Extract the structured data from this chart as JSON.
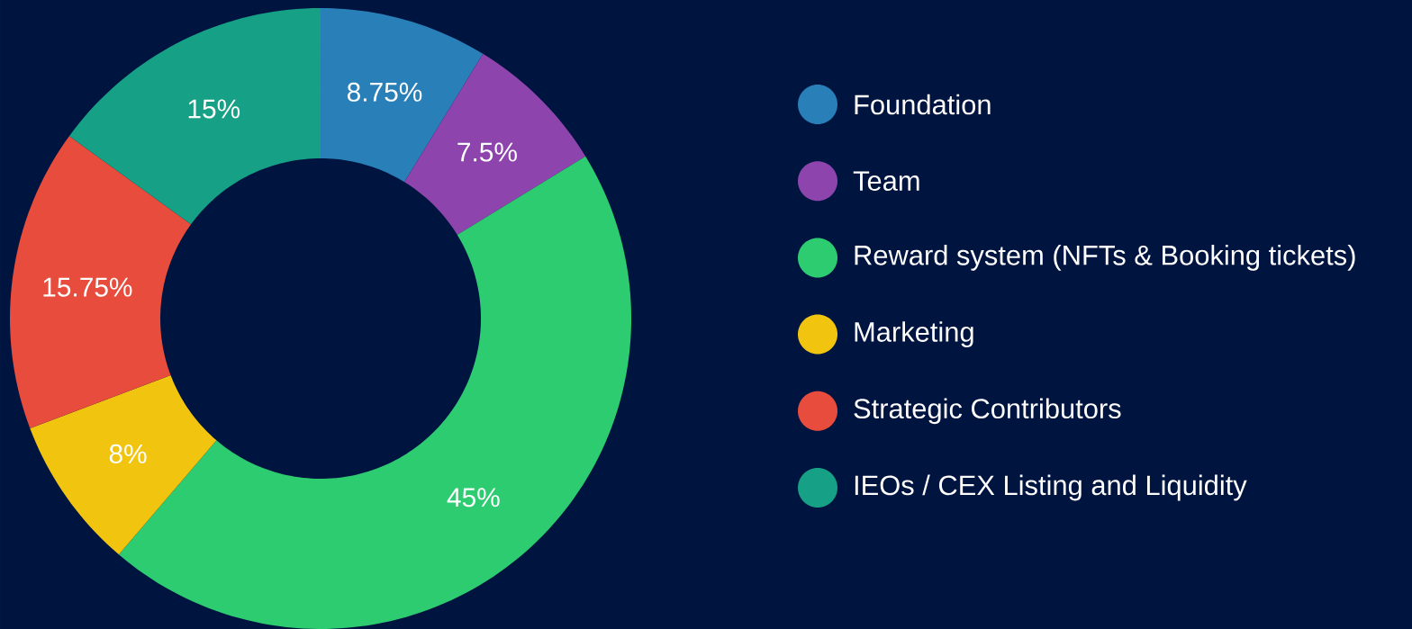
{
  "chart_data": {
    "type": "donut",
    "categories": [
      "Foundation",
      "Team",
      "Reward system (NFTs & Booking tickets)",
      "Marketing",
      "Strategic Contributors",
      "IEOs / CEX Listing and Liquidity"
    ],
    "values": [
      8.75,
      7.5,
      45,
      8,
      15.75,
      15
    ],
    "value_labels": [
      "8.75%",
      "7.5%",
      "45%",
      "8%",
      "15.75%",
      "15%"
    ],
    "colors": [
      "#2980b9",
      "#8e44ad",
      "#2ecc71",
      "#f1c40f",
      "#e74c3c",
      "#16a085"
    ],
    "legend": "right"
  }
}
